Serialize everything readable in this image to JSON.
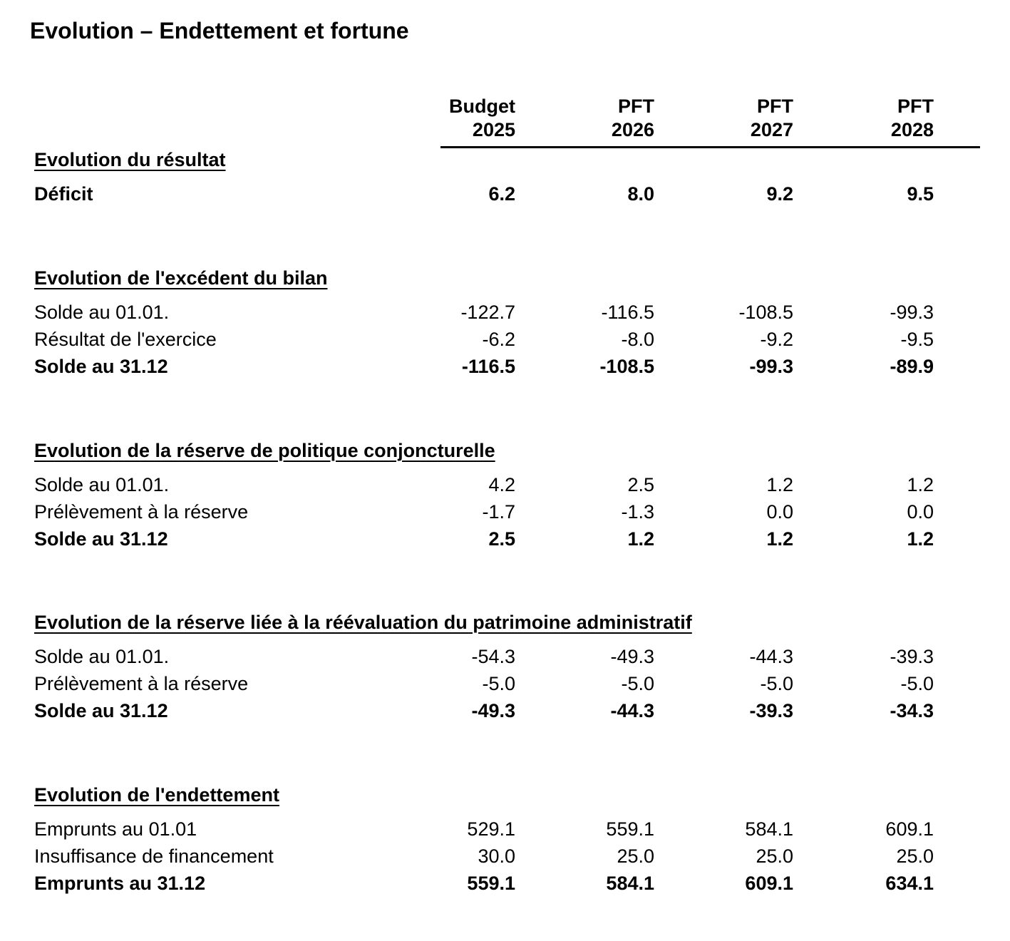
{
  "page": {
    "title": "Evolution – Endettement et fortune"
  },
  "colors": {
    "text": "#000000",
    "background": "#ffffff",
    "rule": "#000000"
  },
  "table": {
    "columns": [
      {
        "line1": "Budget",
        "line2": "2025"
      },
      {
        "line1": "PFT",
        "line2": "2026"
      },
      {
        "line1": "PFT",
        "line2": "2027"
      },
      {
        "line1": "PFT",
        "line2": "2028"
      }
    ],
    "sections": [
      {
        "heading": "Evolution du résultat",
        "rows": [
          {
            "label": "Déficit",
            "bold": true,
            "values": [
              "6.2",
              "8.0",
              "9.2",
              "9.5"
            ]
          }
        ]
      },
      {
        "heading": "Evolution de l'excédent du bilan",
        "rows": [
          {
            "label": "Solde au 01.01.",
            "bold": false,
            "values": [
              "-122.7",
              "-116.5",
              "-108.5",
              "-99.3"
            ]
          },
          {
            "label": "Résultat de l'exercice",
            "bold": false,
            "values": [
              "-6.2",
              "-8.0",
              "-9.2",
              "-9.5"
            ]
          },
          {
            "label": "Solde au 31.12",
            "bold": true,
            "values": [
              "-116.5",
              "-108.5",
              "-99.3",
              "-89.9"
            ]
          }
        ]
      },
      {
        "heading": "Evolution de la réserve de politique conjoncturelle",
        "rows": [
          {
            "label": "Solde au 01.01.",
            "bold": false,
            "values": [
              "4.2",
              "2.5",
              "1.2",
              "1.2"
            ]
          },
          {
            "label": "Prélèvement à la réserve",
            "bold": false,
            "values": [
              "-1.7",
              "-1.3",
              "0.0",
              "0.0"
            ]
          },
          {
            "label": "Solde au 31.12",
            "bold": true,
            "values": [
              "2.5",
              "1.2",
              "1.2",
              "1.2"
            ]
          }
        ]
      },
      {
        "heading": "Evolution de la réserve liée à la réévaluation du patrimoine administratif",
        "rows": [
          {
            "label": "Solde au 01.01.",
            "bold": false,
            "values": [
              "-54.3",
              "-49.3",
              "-44.3",
              "-39.3"
            ]
          },
          {
            "label": "Prélèvement à la réserve",
            "bold": false,
            "values": [
              "-5.0",
              "-5.0",
              "-5.0",
              "-5.0"
            ]
          },
          {
            "label": "Solde au 31.12",
            "bold": true,
            "values": [
              "-49.3",
              "-44.3",
              "-39.3",
              "-34.3"
            ]
          }
        ]
      },
      {
        "heading": "Evolution de l'endettement",
        "rows": [
          {
            "label": "Emprunts au 01.01",
            "bold": false,
            "values": [
              "529.1",
              "559.1",
              "584.1",
              "609.1"
            ]
          },
          {
            "label": "Insuffisance de financement",
            "bold": false,
            "values": [
              "30.0",
              "25.0",
              "25.0",
              "25.0"
            ]
          },
          {
            "label": "Emprunts au 31.12",
            "bold": true,
            "values": [
              "559.1",
              "584.1",
              "609.1",
              "634.1"
            ]
          }
        ]
      }
    ]
  }
}
